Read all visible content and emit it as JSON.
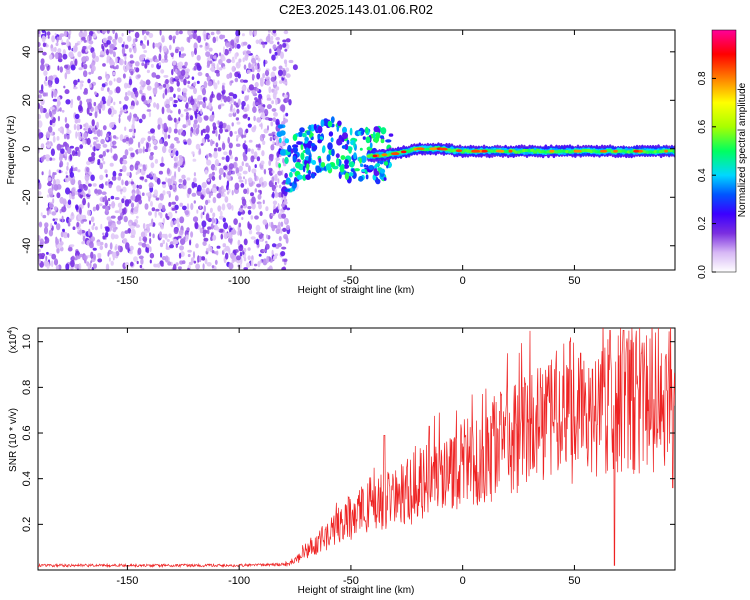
{
  "title": "C2E3.2025.143.01.06.R02",
  "colors": {
    "snr_line": "#ee2222",
    "axis": "#000000",
    "background": "#ffffff"
  },
  "chart_data": [
    {
      "type": "heatmap",
      "title": "C2E3.2025.143.01.06.R02",
      "xlabel": "Height of straight line (km)",
      "ylabel": "Frequency (Hz)",
      "xlim": [
        -190,
        95
      ],
      "ylim": [
        -50,
        49
      ],
      "x_ticks": [
        -150,
        -100,
        -50,
        0,
        50
      ],
      "y_ticks": [
        -40,
        -20,
        0,
        20,
        40
      ],
      "grid": false,
      "colorbar": {
        "label": "Normalized spectral amplitude",
        "range": [
          0,
          1
        ],
        "ticks": [
          "0.0",
          "0.2",
          "0.4",
          "0.6",
          "0.8"
        ],
        "colormap": [
          "#ffffff",
          "#d7b8f5",
          "#7b2fe0",
          "#3b00ff",
          "#0055ff",
          "#00d8ff",
          "#00ff60",
          "#a8ff00",
          "#ffff00",
          "#ff8000",
          "#ff0000",
          "#ff0099"
        ]
      },
      "description_regions": [
        {
          "x_range": [
            -190,
            -78
          ],
          "y_range": [
            -50,
            49
          ],
          "amplitude": "low-noise 0.05-0.2"
        },
        {
          "x_range": [
            -78,
            -40
          ],
          "y_range": [
            -15,
            8
          ],
          "amplitude": "scattered 0.2-0.6"
        },
        {
          "x_range": [
            -40,
            95
          ],
          "y_range": [
            -4,
            2
          ],
          "amplitude": "continuous band 0.3-0.9"
        }
      ],
      "ridge_frequency": [
        [
          -80,
          -8
        ],
        [
          -70,
          -2
        ],
        [
          -60,
          2
        ],
        [
          -50,
          -2
        ],
        [
          -40,
          -3
        ],
        [
          -30,
          -2
        ],
        [
          -20,
          0
        ],
        [
          -10,
          0
        ],
        [
          0,
          -1
        ],
        [
          10,
          -1
        ],
        [
          20,
          -1
        ],
        [
          30,
          -1
        ],
        [
          40,
          -1
        ],
        [
          50,
          -1
        ],
        [
          60,
          -1
        ],
        [
          70,
          -1
        ],
        [
          80,
          -1
        ],
        [
          95,
          -1
        ]
      ]
    },
    {
      "type": "line",
      "xlabel": "Height of straight line (km)",
      "ylabel": "SNR (10 * v/v)",
      "y_multiplier": "(x10^4)",
      "xlim": [
        -190,
        95
      ],
      "ylim": [
        0,
        1.06
      ],
      "x_ticks": [
        -150,
        -100,
        -50,
        0,
        50
      ],
      "y_ticks": [
        "0.2",
        "0.4",
        "0.6",
        "0.8",
        "1.0"
      ],
      "grid": false,
      "series": [
        {
          "values_envelope": [
            [
              -190,
              0.02
            ],
            [
              -150,
              0.02
            ],
            [
              -100,
              0.02
            ],
            [
              -80,
              0.025
            ],
            [
              -75,
              0.04
            ],
            [
              -70,
              0.08
            ],
            [
              -60,
              0.16
            ],
            [
              -50,
              0.24
            ],
            [
              -40,
              0.3
            ],
            [
              -30,
              0.32
            ],
            [
              -20,
              0.38
            ],
            [
              -10,
              0.42
            ],
            [
              0,
              0.46
            ],
            [
              10,
              0.53
            ],
            [
              20,
              0.58
            ],
            [
              30,
              0.62
            ],
            [
              40,
              0.66
            ],
            [
              50,
              0.68
            ],
            [
              60,
              0.72
            ],
            [
              70,
              0.76
            ],
            [
              80,
              0.76
            ],
            [
              95,
              0.78
            ]
          ],
          "peaks": [
            [
              -35,
              0.59
            ],
            [
              -15,
              0.63
            ],
            [
              -5,
              0.57
            ],
            [
              35,
              0.8
            ],
            [
              48,
              1.0
            ],
            [
              58,
              0.88
            ],
            [
              66,
              1.05
            ],
            [
              72,
              1.05
            ],
            [
              80,
              0.95
            ],
            [
              94,
              1.02
            ]
          ],
          "dips": [
            [
              68,
              0.02
            ],
            [
              94,
              0.36
            ]
          ]
        }
      ]
    }
  ]
}
